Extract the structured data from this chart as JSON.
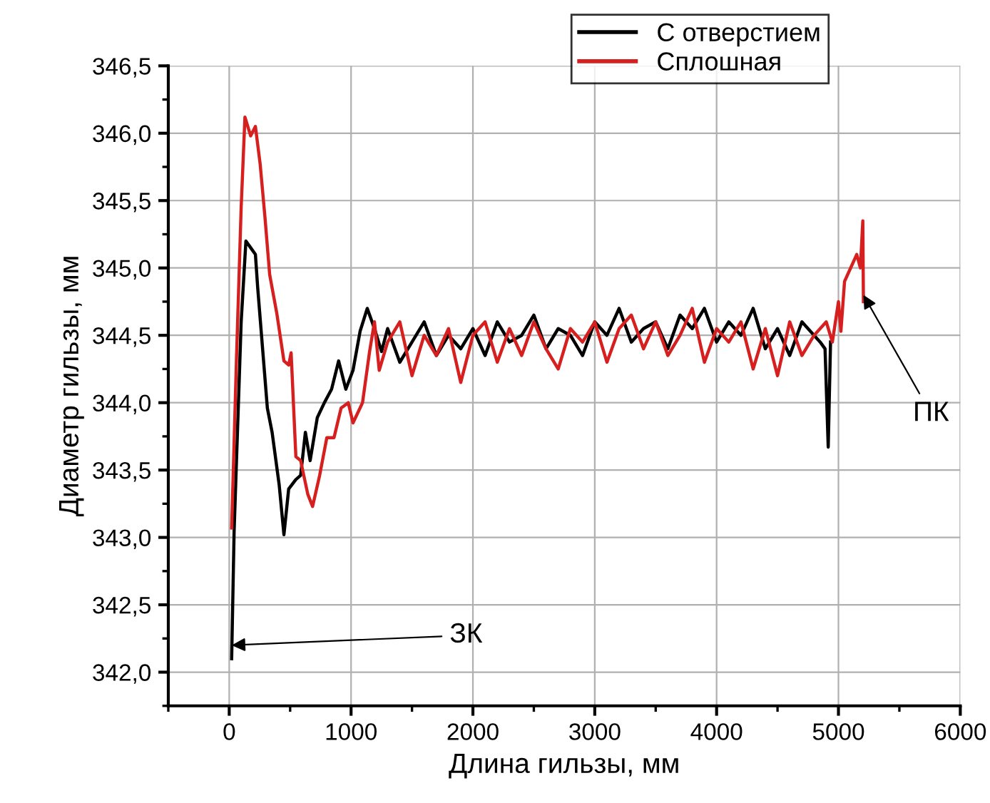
{
  "chart_data": {
    "type": "line",
    "xlabel": "Длина гильзы, мм",
    "ylabel": "Диаметр гильзы, мм",
    "xlim": [
      -500,
      6000
    ],
    "ylim": [
      341.75,
      346.5
    ],
    "xticks": [
      0,
      1000,
      2000,
      3000,
      4000,
      5000,
      6000
    ],
    "yticks": [
      {
        "value": 342.0,
        "label": "342,0"
      },
      {
        "value": 342.5,
        "label": "342,5"
      },
      {
        "value": 343.0,
        "label": "343,0"
      },
      {
        "value": 343.5,
        "label": "343,5"
      },
      {
        "value": 344.0,
        "label": "344,0"
      },
      {
        "value": 344.5,
        "label": "344,5"
      },
      {
        "value": 345.0,
        "label": "345,0"
      },
      {
        "value": 345.5,
        "label": "345,5"
      },
      {
        "value": 346.0,
        "label": "346,0"
      },
      {
        "value": 346.5,
        "label": "346,5"
      }
    ],
    "grid": true,
    "legend": "top right",
    "line_style": "solid",
    "marker": "none",
    "series": [
      {
        "name": "С отверстием",
        "color": "#000000",
        "x": [
          20,
          40,
          98,
          137,
          176,
          215,
          234,
          313,
          352,
          410,
          449,
          488,
          547,
          586,
          625,
          664,
          723,
          781,
          840,
          898,
          957,
          1016,
          1074,
          1133,
          1192,
          1250,
          1300,
          1400,
          1500,
          1600,
          1700,
          1800,
          1900,
          2000,
          2100,
          2200,
          2300,
          2400,
          2500,
          2600,
          2700,
          2800,
          2900,
          3000,
          3100,
          3200,
          3300,
          3400,
          3500,
          3600,
          3700,
          3800,
          3900,
          4000,
          4100,
          4200,
          4300,
          4400,
          4500,
          4600,
          4700,
          4800,
          4850,
          4890,
          4916,
          4935
        ],
        "values": [
          342.1,
          343.04,
          344.6,
          345.2,
          345.15,
          345.1,
          344.85,
          343.96,
          343.78,
          343.39,
          343.02,
          343.36,
          343.43,
          343.46,
          343.78,
          343.57,
          343.89,
          344.0,
          344.1,
          344.31,
          344.1,
          344.24,
          344.53,
          344.7,
          344.55,
          344.38,
          344.55,
          344.3,
          344.45,
          344.6,
          344.35,
          344.5,
          344.4,
          344.55,
          344.35,
          344.6,
          344.45,
          344.5,
          344.65,
          344.4,
          344.55,
          344.5,
          344.35,
          344.6,
          344.5,
          344.7,
          344.45,
          344.55,
          344.6,
          344.4,
          344.65,
          344.55,
          344.7,
          344.45,
          344.6,
          344.5,
          344.7,
          344.4,
          344.55,
          344.35,
          344.6,
          344.5,
          344.45,
          344.4,
          343.67,
          344.45
        ]
      },
      {
        "name": "Сплошная",
        "color": "#d62020",
        "x": [
          20,
          59,
          98,
          129,
          176,
          215,
          254,
          293,
          332,
          391,
          449,
          488,
          508,
          547,
          586,
          645,
          684,
          742,
          801,
          860,
          918,
          977,
          1016,
          1094,
          1152,
          1192,
          1231,
          1300,
          1400,
          1500,
          1600,
          1700,
          1800,
          1900,
          2000,
          2100,
          2200,
          2300,
          2400,
          2500,
          2600,
          2700,
          2800,
          2900,
          3000,
          3100,
          3200,
          3300,
          3400,
          3500,
          3600,
          3700,
          3800,
          3900,
          4000,
          4100,
          4200,
          4300,
          4400,
          4500,
          4600,
          4700,
          4800,
          4900,
          4950,
          5000,
          5020,
          5050,
          5100,
          5150,
          5180,
          5200,
          5205
        ],
        "values": [
          343.07,
          344.31,
          345.45,
          346.12,
          345.98,
          346.05,
          345.77,
          345.38,
          344.95,
          344.66,
          344.31,
          344.28,
          344.37,
          343.6,
          343.57,
          343.32,
          343.23,
          343.46,
          343.74,
          343.74,
          343.96,
          344.0,
          343.85,
          344.0,
          344.38,
          344.6,
          344.24,
          344.45,
          344.6,
          344.2,
          344.5,
          344.35,
          344.55,
          344.15,
          344.5,
          344.6,
          344.3,
          344.55,
          344.35,
          344.6,
          344.4,
          344.25,
          344.55,
          344.45,
          344.6,
          344.3,
          344.55,
          344.65,
          344.4,
          344.6,
          344.35,
          344.5,
          344.7,
          344.3,
          344.55,
          344.45,
          344.6,
          344.25,
          344.55,
          344.2,
          344.6,
          344.35,
          344.5,
          344.6,
          344.45,
          344.75,
          344.53,
          344.9,
          345.0,
          345.1,
          345.0,
          345.35,
          344.75
        ]
      }
    ],
    "annotations": [
      {
        "text": "ЗК",
        "x": 20,
        "y": 342.2
      },
      {
        "text": "ПК",
        "x": 5205,
        "y": 344.8
      }
    ]
  }
}
